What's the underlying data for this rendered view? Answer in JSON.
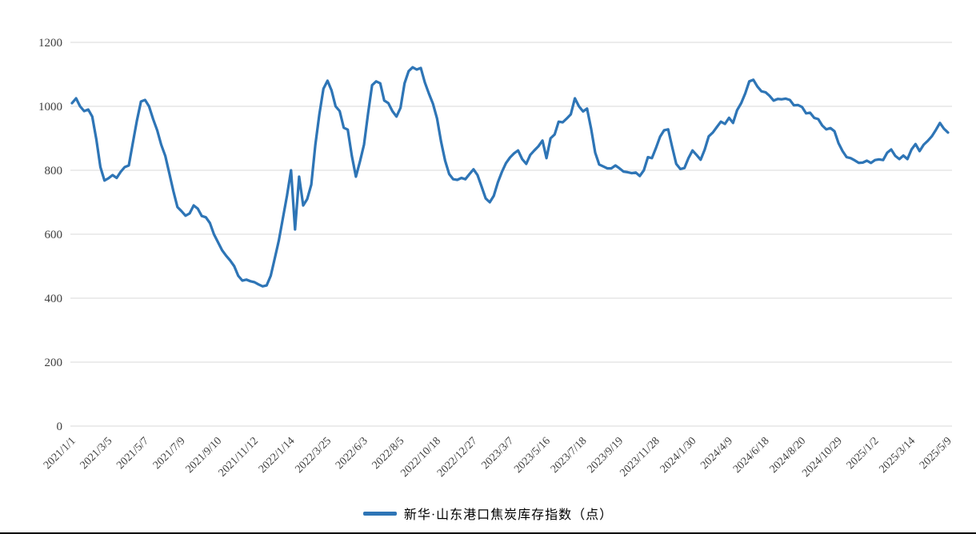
{
  "chart_data": {
    "type": "line",
    "title": "",
    "legend_label": "新华·山东港口焦炭库存指数（点）",
    "legend_position": "bottom-center",
    "grid": "horizontal",
    "line_color": "#2E75B6",
    "grid_color": "#D9D9D9",
    "tick_label_color": "#404040",
    "ylim": [
      0,
      1200
    ],
    "yticks": [
      0,
      200,
      400,
      600,
      800,
      1000,
      1200
    ],
    "categories": [
      "2021/1/1",
      "2021/3/5",
      "2021/5/7",
      "2021/7/9",
      "2021/9/10",
      "2021/11/12",
      "2022/1/14",
      "2022/3/25",
      "2022/6/3",
      "2022/8/5",
      "2022/10/18",
      "2022/12/27",
      "2023/3/7",
      "2023/5/16",
      "2023/7/18",
      "2023/9/19",
      "2023/11/28",
      "2024/1/30",
      "2024/4/9",
      "2024/6/18",
      "2024/8/20",
      "2024/10/29",
      "2025/1/2",
      "2025/3/14",
      "2025/5/9"
    ],
    "label_every_n_points": 9,
    "values": [
      1010,
      1025,
      1000,
      985,
      990,
      968,
      897,
      810,
      768,
      775,
      785,
      776,
      795,
      810,
      815,
      885,
      955,
      1015,
      1020,
      1000,
      960,
      925,
      880,
      845,
      790,
      735,
      685,
      672,
      658,
      665,
      690,
      680,
      657,
      653,
      635,
      600,
      575,
      550,
      533,
      518,
      500,
      470,
      455,
      458,
      453,
      450,
      443,
      437,
      440,
      470,
      525,
      580,
      650,
      720,
      800,
      615,
      780,
      690,
      710,
      755,
      880,
      975,
      1055,
      1080,
      1050,
      1000,
      985,
      933,
      927,
      845,
      780,
      827,
      880,
      978,
      1066,
      1078,
      1072,
      1018,
      1010,
      985,
      968,
      995,
      1072,
      1110,
      1122,
      1115,
      1120,
      1075,
      1040,
      1008,
      962,
      890,
      830,
      788,
      772,
      770,
      776,
      772,
      788,
      803,
      785,
      749,
      712,
      700,
      720,
      762,
      795,
      822,
      840,
      853,
      862,
      835,
      820,
      848,
      862,
      875,
      893,
      838,
      900,
      912,
      952,
      950,
      962,
      975,
      1025,
      1000,
      984,
      993,
      930,
      855,
      818,
      812,
      806,
      806,
      815,
      806,
      796,
      794,
      791,
      793,
      782,
      800,
      841,
      838,
      870,
      905,
      925,
      928,
      872,
      820,
      804,
      807,
      838,
      862,
      848,
      833,
      864,
      906,
      918,
      935,
      952,
      945,
      964,
      948,
      988,
      1010,
      1040,
      1078,
      1083,
      1062,
      1047,
      1044,
      1033,
      1018,
      1023,
      1022,
      1024,
      1020,
      1003,
      1004,
      998,
      978,
      980,
      964,
      960,
      940,
      928,
      932,
      922,
      885,
      860,
      841,
      838,
      831,
      823,
      824,
      830,
      823,
      832,
      834,
      832,
      855,
      865,
      845,
      835,
      846,
      835,
      865,
      882,
      860,
      880,
      892,
      906,
      926,
      948,
      930,
      918
    ]
  },
  "legend": {
    "label": "新华·山东港口焦炭库存指数（点）"
  }
}
